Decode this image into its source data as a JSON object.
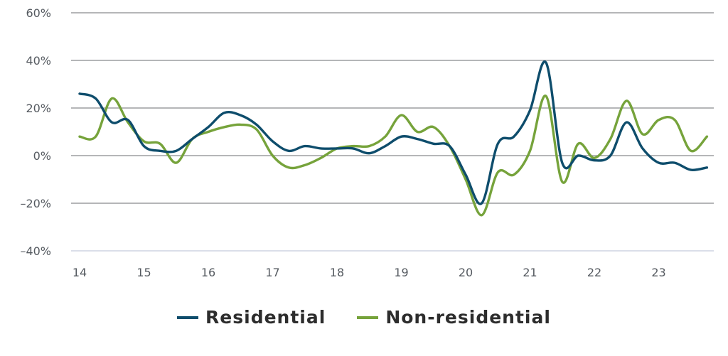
{
  "chart_data": {
    "type": "line",
    "title": "",
    "xlabel": "",
    "ylabel": "",
    "ylim": [
      -40,
      60
    ],
    "xlim": [
      14,
      23.8
    ],
    "yticks": [
      {
        "value": 60,
        "label": "60%"
      },
      {
        "value": 40,
        "label": "40%"
      },
      {
        "value": 20,
        "label": "20%"
      },
      {
        "value": 0,
        "label": "0%"
      },
      {
        "value": -20,
        "label": "–20%"
      },
      {
        "value": -40,
        "label": "–40%"
      }
    ],
    "xticks": [
      {
        "value": 14,
        "label": "14"
      },
      {
        "value": 15,
        "label": "15"
      },
      {
        "value": 16,
        "label": "16"
      },
      {
        "value": 17,
        "label": "17"
      },
      {
        "value": 18,
        "label": "18"
      },
      {
        "value": 19,
        "label": "19"
      },
      {
        "value": 20,
        "label": "20"
      },
      {
        "value": 21,
        "label": "21"
      },
      {
        "value": 22,
        "label": "22"
      },
      {
        "value": 23,
        "label": "23"
      }
    ],
    "grid": true,
    "legend_position": "bottom",
    "series": [
      {
        "name": "Residential",
        "color": "#0e4d6c",
        "x": [
          14.0,
          14.25,
          14.5,
          14.75,
          15.0,
          15.25,
          15.5,
          15.75,
          16.0,
          16.25,
          16.5,
          16.75,
          17.0,
          17.25,
          17.5,
          17.75,
          18.0,
          18.25,
          18.5,
          18.75,
          19.0,
          19.25,
          19.5,
          19.75,
          20.0,
          20.25,
          20.5,
          20.75,
          21.0,
          21.25,
          21.5,
          21.75,
          22.0,
          22.25,
          22.5,
          22.75,
          23.0,
          23.25,
          23.5,
          23.75
        ],
        "values": [
          26,
          24,
          14,
          15,
          4,
          2,
          2,
          7,
          12,
          18,
          17,
          13,
          6,
          2,
          4,
          3,
          3,
          3,
          1,
          4,
          8,
          7,
          5,
          4,
          -8,
          -20,
          5,
          8,
          19,
          39,
          -3,
          0,
          -2,
          0,
          14,
          3,
          -3,
          -3,
          -6,
          -5
        ]
      },
      {
        "name": "Non-residential",
        "color": "#76a33b",
        "x": [
          14.0,
          14.25,
          14.5,
          14.75,
          15.0,
          15.25,
          15.5,
          15.75,
          16.0,
          16.25,
          16.5,
          16.75,
          17.0,
          17.25,
          17.5,
          17.75,
          18.0,
          18.25,
          18.5,
          18.75,
          19.0,
          19.25,
          19.5,
          19.75,
          20.0,
          20.25,
          20.5,
          20.75,
          21.0,
          21.25,
          21.5,
          21.75,
          22.0,
          22.25,
          22.5,
          22.75,
          23.0,
          23.25,
          23.5,
          23.75
        ],
        "values": [
          8,
          8,
          24,
          14,
          6,
          5,
          -3,
          7,
          10,
          12,
          13,
          11,
          0,
          -5,
          -4,
          -1,
          3,
          4,
          4,
          8,
          17,
          10,
          12,
          4,
          -10,
          -25,
          -7,
          -8,
          2,
          25,
          -11,
          5,
          -1,
          7,
          23,
          9,
          15,
          15,
          2,
          8
        ]
      }
    ]
  }
}
